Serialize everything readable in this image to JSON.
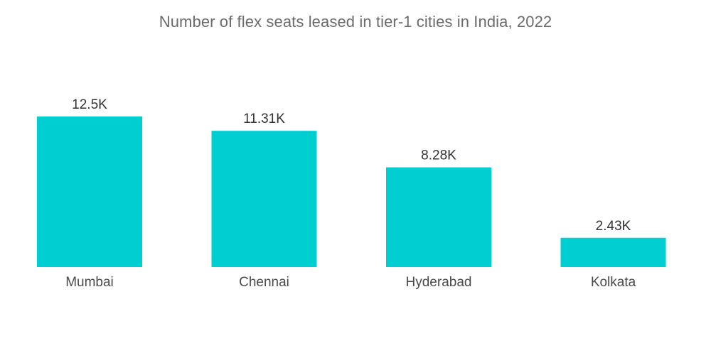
{
  "chart_data": {
    "type": "bar",
    "title": "Number of flex seats leased in tier-1 cities in India, 2022",
    "xlabel": "",
    "ylabel": "",
    "categories": [
      "Mumbai",
      "Chennai",
      "Hyderabad",
      "Kolkata"
    ],
    "values": [
      12.5,
      11.31,
      8.28,
      2.43
    ],
    "value_labels": [
      "12.5K",
      "11.31K",
      "8.28K",
      "2.43K"
    ],
    "unit": "K",
    "ylim": [
      0,
      12.5
    ],
    "grid": false,
    "legend": "none",
    "bar_color": "#00ced1"
  }
}
